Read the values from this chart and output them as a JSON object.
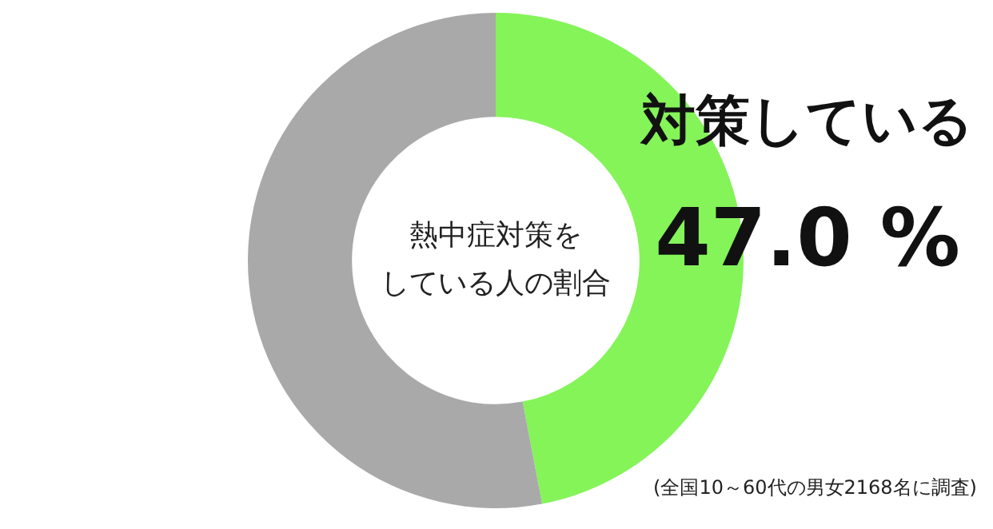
{
  "chart_data": {
    "type": "donut",
    "title": "熱中症対策をしている人の割合",
    "categories": [
      "対策している",
      null
    ],
    "values": [
      47.0,
      53.0
    ],
    "colors": [
      "#84f459",
      "#a9a9a9"
    ],
    "value_labels": [
      "47.0 %",
      null
    ],
    "annotations": [
      "(全国10～60代の男女2168名に調査)"
    ]
  }
}
